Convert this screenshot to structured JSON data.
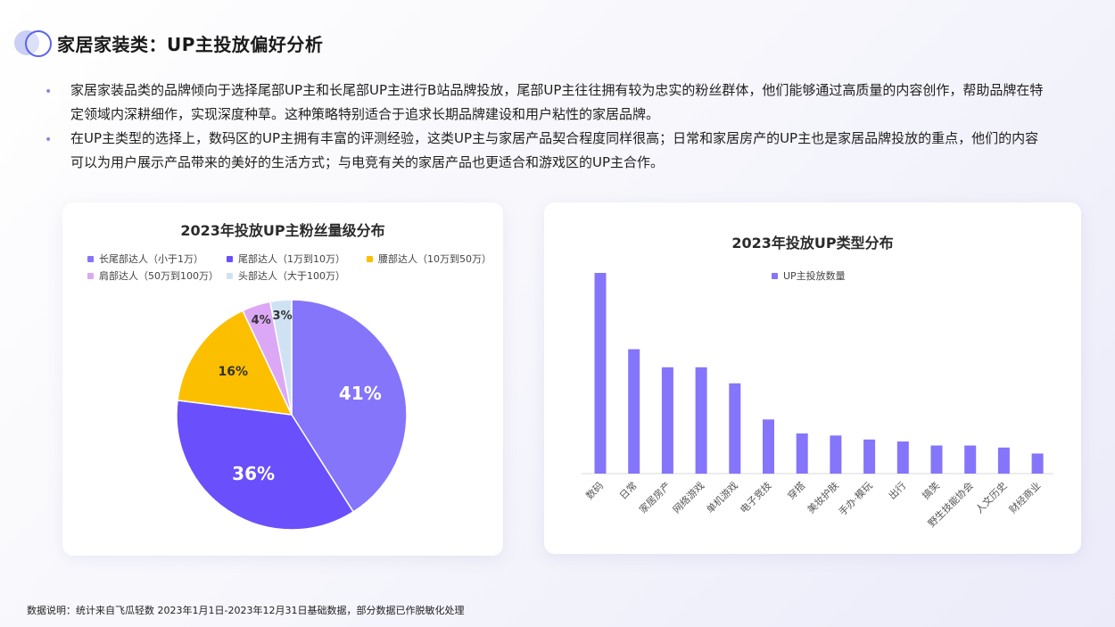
{
  "page": {
    "title": "家居家装类：UP主投放偏好分析",
    "bullets": [
      "家居家装品类的品牌倾向于选择尾部UP主和长尾部UP主进行B站品牌投放，尾部UP主往往拥有较为忠实的粉丝群体，他们能够通过高质量的内容创作，帮助品牌在特定领域内深耕细作，实现深度种草。这种策略特别适合于追求长期品牌建设和用户粘性的家居品牌。",
      "在UP主类型的选择上，数码区的UP主拥有丰富的评测经验，这类UP主与家居产品契合程度同样很高；日常和家居房产的UP主也是家居品牌投放的重点，他们的内容可以为用户展示产品带来的美好的生活方式；与电竞有关的家居产品也更适合和游戏区的UP主合作。"
    ],
    "footnote": "数据说明：统计来自飞瓜轻数 2023年1月1日-2023年12月31日基础数据，部分数据已作脱敏化处理"
  },
  "chart_data": [
    {
      "type": "pie",
      "title": "2023年投放UP主粉丝量级分布",
      "legend_position": "top",
      "labels": [
        "长尾部达人（小于1万）",
        "尾部达人（1万到10万）",
        "腰部达人（10万到50万）",
        "肩部达人（50万到100万）",
        "头部达人（大于100万）"
      ],
      "values": [
        41,
        36,
        16,
        4,
        3
      ],
      "value_labels": [
        "41%",
        "36%",
        "16%",
        "4%",
        "3%"
      ],
      "colors": [
        "#8575fb",
        "#6a4ffc",
        "#fcbf00",
        "#dca8f6",
        "#cfe2f3"
      ]
    },
    {
      "type": "bar",
      "title": "2023年投放UP类型分布",
      "legend_position": "top",
      "categories": [
        "数码",
        "日常",
        "家居房产",
        "网络游戏",
        "单机游戏",
        "电子竞技",
        "穿搭",
        "美妆护肤",
        "手办·模玩",
        "出行",
        "搞笑",
        "野生技能协会",
        "人文历史",
        "财经商业"
      ],
      "series": [
        {
          "name": "UP主投放数量",
          "values": [
            100,
            62,
            53,
            53,
            45,
            27,
            20,
            19,
            17,
            16,
            14,
            14,
            13,
            10
          ],
          "color": "#8575fb"
        }
      ],
      "ylim": [
        0,
        100
      ],
      "y_axis_visible": false,
      "grid": false
    }
  ]
}
